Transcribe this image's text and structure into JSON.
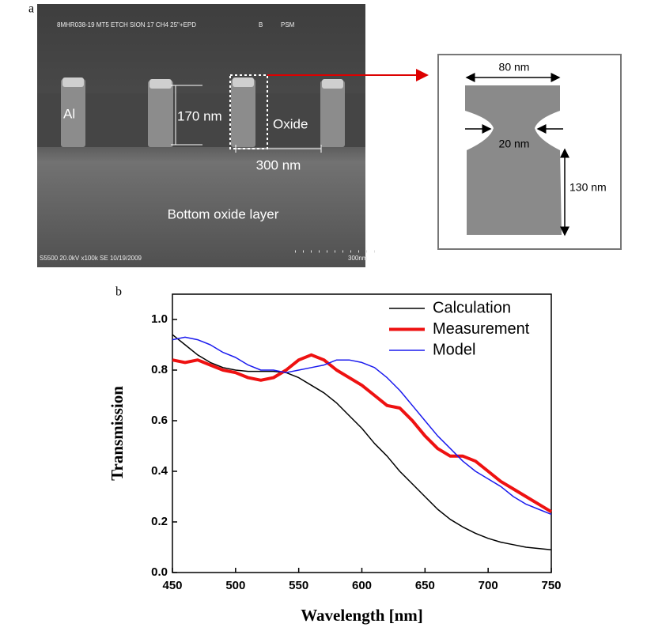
{
  "panel_a_label": "a",
  "sem_image": {
    "header_id": "8MHR038-19  MT5 ETCH SION 17 CH4 25\"+EPD",
    "header_b": "B",
    "header_psm": "PSM",
    "al_label": "Al",
    "height_label": "170 nm",
    "oxide_label": "Oxide",
    "pitch_label": "300 nm",
    "bottom_label": "Bottom oxide layer",
    "footer": "S5500 20.0kV x100k SE 10/19/2009",
    "scale_label": "300nm"
  },
  "schematic": {
    "top_width": "80 nm",
    "neck_width": "20 nm",
    "lower_height": "130 nm"
  },
  "chart_data": {
    "type": "line",
    "panel_label": "b",
    "x_label": "Wavelength [nm]",
    "y_label": "Transmission",
    "x": [
      450,
      460,
      470,
      480,
      490,
      500,
      510,
      520,
      530,
      540,
      550,
      560,
      570,
      580,
      590,
      600,
      610,
      620,
      630,
      640,
      650,
      660,
      670,
      680,
      690,
      700,
      710,
      720,
      730,
      740,
      750
    ],
    "series": [
      {
        "name": "Calculation",
        "color": "#000000",
        "width": 1.5,
        "values": [
          0.94,
          0.9,
          0.86,
          0.83,
          0.81,
          0.8,
          0.795,
          0.795,
          0.795,
          0.79,
          0.77,
          0.74,
          0.71,
          0.67,
          0.62,
          0.57,
          0.51,
          0.46,
          0.4,
          0.35,
          0.3,
          0.25,
          0.21,
          0.18,
          0.155,
          0.135,
          0.12,
          0.11,
          0.1,
          0.095,
          0.09
        ]
      },
      {
        "name": "Measurement",
        "color": "#ee1111",
        "width": 4,
        "values": [
          0.84,
          0.83,
          0.84,
          0.82,
          0.8,
          0.79,
          0.77,
          0.76,
          0.77,
          0.8,
          0.84,
          0.86,
          0.84,
          0.8,
          0.77,
          0.74,
          0.7,
          0.66,
          0.65,
          0.6,
          0.54,
          0.49,
          0.46,
          0.46,
          0.44,
          0.4,
          0.36,
          0.33,
          0.3,
          0.27,
          0.24
        ]
      },
      {
        "name": "Model",
        "color": "#1a1aee",
        "width": 1.5,
        "values": [
          0.92,
          0.93,
          0.92,
          0.9,
          0.87,
          0.85,
          0.82,
          0.8,
          0.8,
          0.79,
          0.8,
          0.81,
          0.82,
          0.84,
          0.84,
          0.83,
          0.81,
          0.77,
          0.72,
          0.66,
          0.6,
          0.54,
          0.49,
          0.44,
          0.4,
          0.37,
          0.34,
          0.3,
          0.27,
          0.25,
          0.23
        ]
      }
    ],
    "xlim": [
      450,
      750
    ],
    "xticks": [
      450,
      500,
      550,
      600,
      650,
      700,
      750
    ],
    "ylim": [
      0,
      1.1
    ],
    "yticks": [
      {
        "value": 0,
        "label": "0.0"
      },
      0.2,
      0.4,
      0.6,
      0.8,
      {
        "value": 1,
        "label": "1.0"
      }
    ],
    "legend": "upper right"
  }
}
